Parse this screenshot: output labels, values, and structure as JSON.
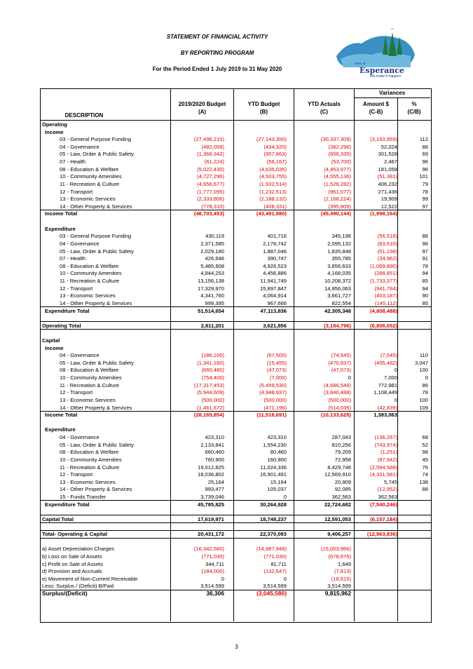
{
  "header": {
    "title": "STATEMENT OF FINANCIAL ACTIVITY",
    "subtitle": "BY REPORTING PROGRAM",
    "period": "For the Period Ended 1 July 2019 to 31 May 2020"
  },
  "logo": {
    "small": "Shire of",
    "name": "Esperance",
    "tag": "We make it happen!"
  },
  "columns": {
    "description": "DESCRIPTION",
    "variances": "Variances",
    "c0": [
      "2019/2020 Budget",
      "(A)"
    ],
    "c1": [
      "YTD Budget",
      "(B)"
    ],
    "c2": [
      "YTD Actuals",
      "(C)"
    ],
    "c3": [
      "Amount $",
      "(C-B)"
    ],
    "c4": [
      "%",
      "(C/B)"
    ]
  },
  "rows": [
    {
      "label": "Operating",
      "level": 0,
      "bold": true,
      "vals": [
        "",
        "",
        "",
        "",
        ""
      ]
    },
    {
      "label": "Income",
      "level": 1,
      "bold": true,
      "vals": [
        "",
        "",
        "",
        "",
        ""
      ]
    },
    {
      "label": "03 - General Purpose Funding",
      "level": 2,
      "vals": [
        "(27,496,215)",
        "(27,143,350)",
        "(30,337,309)",
        "(3,193,959)",
        "112"
      ]
    },
    {
      "label": "04 - Governance",
      "level": 2,
      "vals": [
        "(482,058)",
        "(434,320)",
        "(382,296)",
        "52,024",
        "88"
      ]
    },
    {
      "label": "05 - Law, Order & Public Safety",
      "level": 2,
      "vals": [
        "(1,368,342)",
        "(957,863)",
        "(656,335)",
        "301,528",
        "69"
      ]
    },
    {
      "label": "07 - Health",
      "level": 2,
      "vals": [
        "(61,224)",
        "(56,167)",
        "(53,700)",
        "2,467",
        "96"
      ]
    },
    {
      "label": "08 - Education & Welfare",
      "level": 2,
      "vals": [
        "(5,022,430)",
        "(4,635,035)",
        "(4,453,977)",
        "181,058",
        "96"
      ]
    },
    {
      "label": "10 - Community Amenities",
      "level": 2,
      "vals": [
        "(4,727,296)",
        "(4,503,755)",
        "(4,555,136)",
        "(51,381)",
        "101"
      ]
    },
    {
      "label": "11 - Recreation & Culture",
      "level": 2,
      "vals": [
        "(4,656,677)",
        "(1,932,514)",
        "(1,526,282)",
        "406,232",
        "79"
      ]
    },
    {
      "label": "12 - Transport",
      "level": 2,
      "vals": [
        "(1,777,095)",
        "(1,232,513)",
        "(961,077)",
        "271,436",
        "78"
      ]
    },
    {
      "label": "13 - Economic Services",
      "level": 2,
      "vals": [
        "(2,333,806)",
        "(2,188,132)",
        "(2,168,224)",
        "19,909",
        "99"
      ]
    },
    {
      "label": "14 - Other Property & Services",
      "level": 2,
      "vals": [
        "(778,310)",
        "(408,331)",
        "(395,809)",
        "12,522",
        "97"
      ]
    },
    {
      "label": "Income Total",
      "level": 1,
      "bold": true,
      "line": true,
      "vals": [
        "(48,703,453)",
        "(43,491,980)",
        "(45,490,144)",
        "(1,998,164)",
        ""
      ]
    },
    {
      "label": "",
      "level": 0,
      "vals": [
        "",
        "",
        "",
        "",
        ""
      ]
    },
    {
      "label": "Expenditure",
      "level": 1,
      "bold": true,
      "vals": [
        "",
        "",
        "",
        "",
        ""
      ]
    },
    {
      "label": "03 - General Purpose Funding",
      "level": 2,
      "vals": [
        "430,119",
        "401,716",
        "345,198",
        "(56,518)",
        "86"
      ]
    },
    {
      "label": "04 - Governance",
      "level": 2,
      "vals": [
        "2,371,585",
        "2,178,742",
        "2,095,132",
        "(83,610)",
        "96"
      ]
    },
    {
      "label": "05 - Law, Order & Public Safety",
      "level": 2,
      "vals": [
        "2,029,180",
        "1,887,046",
        "1,835,848",
        "(51,198)",
        "97"
      ]
    },
    {
      "label": "07 - Health",
      "level": 2,
      "vals": [
        "426,646",
        "390,747",
        "355,785",
        "(34,962)",
        "91"
      ]
    },
    {
      "label": "08 - Education & Welfare",
      "level": 2,
      "vals": [
        "5,485,608",
        "4,926,523",
        "3,856,633",
        "(1,069,890)",
        "78"
      ]
    },
    {
      "label": "10 - Community Amenities",
      "level": 2,
      "vals": [
        "4,944,253",
        "4,456,886",
        "4,168,035",
        "(288,851)",
        "94"
      ]
    },
    {
      "label": "11 - Recreation & Culture",
      "level": 2,
      "vals": [
        "13,156,138",
        "11,941,749",
        "10,208,372",
        "(1,733,377)",
        "85"
      ]
    },
    {
      "label": "12 - Transport",
      "level": 2,
      "vals": [
        "17,329,970",
        "15,897,847",
        "14,956,063",
        "(941,784)",
        "94"
      ]
    },
    {
      "label": "13 - Economic Services",
      "level": 2,
      "vals": [
        "4,341,760",
        "4,064,914",
        "3,661,727",
        "(403,187)",
        "90"
      ]
    },
    {
      "label": "14 - Other Property & Services",
      "level": 2,
      "vals": [
        "999,395",
        "967,666",
        "822,554",
        "(145,112)",
        "85"
      ]
    },
    {
      "label": "Expenditure Total",
      "level": 1,
      "bold": true,
      "line": true,
      "vals": [
        "51,514,654",
        "47,113,836",
        "42,305,348",
        "(4,808,488)",
        ""
      ]
    },
    {
      "label": "",
      "level": 0,
      "vals": [
        "",
        "",
        "",
        "",
        ""
      ]
    },
    {
      "label": "Operating Total",
      "level": 0,
      "bold": true,
      "line": true,
      "line2": true,
      "vals": [
        "2,811,201",
        "3,621,856",
        "(3,184,796)",
        "(6,806,652)",
        ""
      ]
    },
    {
      "label": "",
      "level": 0,
      "vals": [
        "",
        "",
        "",
        "",
        ""
      ]
    },
    {
      "label": "Capital",
      "level": 0,
      "bold": true,
      "vals": [
        "",
        "",
        "",
        "",
        ""
      ]
    },
    {
      "label": "Income",
      "level": 1,
      "bold": true,
      "vals": [
        "",
        "",
        "",
        "",
        ""
      ]
    },
    {
      "label": "04 - Governance",
      "level": 2,
      "vals": [
        "(186,100)",
        "(67,500)",
        "(74,545)",
        "(7,045)",
        "110"
      ]
    },
    {
      "label": "05 - Law, Order & Public Safety",
      "level": 2,
      "vals": [
        "(1,341,160)",
        "(15,455)",
        "(470,937)",
        "(455,482)",
        "3,047"
      ]
    },
    {
      "label": "08 - Education & Welfare",
      "level": 2,
      "vals": [
        "(660,460)",
        "(47,073)",
        "(47,073)",
        "0",
        "100"
      ]
    },
    {
      "label": "10 - Community Amenities",
      "level": 2,
      "vals": [
        "(754,400)",
        "(7,000)",
        "0",
        "7,000",
        "0"
      ]
    },
    {
      "label": "11 - Recreation & Culture",
      "level": 2,
      "vals": [
        "(17,317,453)",
        "(5,459,530)",
        "(4,686,549)",
        "772,981",
        "86"
      ]
    },
    {
      "label": "12 - Transport",
      "level": 2,
      "vals": [
        "(5,944,609)",
        "(4,948,937)",
        "(3,840,488)",
        "1,108,449",
        "78"
      ]
    },
    {
      "label": "13 - Economic Services",
      "level": 2,
      "vals": [
        "(500,000)",
        "(500,000)",
        "(500,000)",
        "0",
        "100"
      ]
    },
    {
      "label": "14 - Other Property & Services",
      "level": 2,
      "vals": [
        "(1,461,672)",
        "(471,196)",
        "(514,035)",
        "(42,839)",
        "109"
      ]
    },
    {
      "label": "Income Total",
      "level": 1,
      "bold": true,
      "line": true,
      "vals": [
        "(28,165,854)",
        "(11,516,691)",
        "(10,133,628)",
        "1,383,063",
        ""
      ]
    },
    {
      "label": "",
      "level": 0,
      "vals": [
        "",
        "",
        "",
        "",
        ""
      ]
    },
    {
      "label": "Expenditure",
      "level": 1,
      "bold": true,
      "vals": [
        "",
        "",
        "",
        "",
        ""
      ]
    },
    {
      "label": "04 - Governance",
      "level": 2,
      "vals": [
        "423,310",
        "423,310",
        "287,043",
        "(136,267)",
        "68"
      ]
    },
    {
      "label": "05 - Law, Order & Public Safety",
      "level": 2,
      "vals": [
        "2,133,841",
        "1,554,230",
        "810,256",
        "(743,974)",
        "52"
      ]
    },
    {
      "label": "08 - Education & Welfare",
      "level": 2,
      "vals": [
        "660,460",
        "80,460",
        "79,209",
        "(1,251)",
        "98"
      ]
    },
    {
      "label": "10 - Community Amenities",
      "level": 2,
      "vals": [
        "760,900",
        "160,900",
        "72,958",
        "(87,942)",
        "45"
      ]
    },
    {
      "label": "11 - Recreation & Culture",
      "level": 2,
      "vals": [
        "19,012,825",
        "11,024,336",
        "8,429,748",
        "(2,594,588)",
        "76"
      ]
    },
    {
      "label": "12 - Transport",
      "level": 2,
      "vals": [
        "18,036,802",
        "16,901,491",
        "12,569,910",
        "(4,331,581)",
        "74"
      ]
    },
    {
      "label": "13 - Economic Services",
      "level": 2,
      "vals": [
        "25,164",
        "15,164",
        "20,909",
        "5,745",
        "138"
      ]
    },
    {
      "label": "14 - Other Property & Services",
      "level": 2,
      "vals": [
        "993,477",
        "105,037",
        "92,085",
        "(12,952)",
        "88"
      ]
    },
    {
      "label": "15 - Funds Transfer",
      "level": 2,
      "vals": [
        "3,739,046",
        "0",
        "362,563",
        "362,563",
        ""
      ]
    },
    {
      "label": "Expenditure Total",
      "level": 1,
      "bold": true,
      "line": true,
      "vals": [
        "45,785,825",
        "30,264,928",
        "22,724,682",
        "(7,540,246)",
        ""
      ]
    },
    {
      "label": "",
      "level": 0,
      "vals": [
        "",
        "",
        "",
        "",
        ""
      ]
    },
    {
      "label": "Capital Total",
      "level": 0,
      "bold": true,
      "line": true,
      "line2": true,
      "vals": [
        "17,619,971",
        "18,748,237",
        "12,591,053",
        "(6,157,184)",
        ""
      ]
    },
    {
      "label": "",
      "level": 0,
      "vals": [
        "",
        "",
        "",
        "",
        ""
      ]
    },
    {
      "label": "Total- Operating & Capital",
      "level": 0,
      "bold": true,
      "line": true,
      "line2": true,
      "vals": [
        "20,431,172",
        "22,370,093",
        "9,406,257",
        "(12,963,836)",
        ""
      ]
    },
    {
      "label": "",
      "level": 0,
      "vals": [
        "",
        "",
        "",
        "",
        ""
      ]
    },
    {
      "label": "a) Asset Depreciation Charges",
      "level": 0,
      "vals": [
        "(16,342,560)",
        "(14,987,948)",
        "(15,003,966)",
        "",
        ""
      ]
    },
    {
      "label": "b) Loss on Sale of Assets",
      "level": 0,
      "vals": [
        "(771,030)",
        "(771,030)",
        "(678,876)",
        "",
        ""
      ]
    },
    {
      "label": "c) Profit on Sale of Assets",
      "level": 0,
      "vals": [
        "344,711",
        "81,711",
        "1,649",
        "",
        ""
      ]
    },
    {
      "label": "d) Provision and Accruals",
      "level": 0,
      "vals": [
        "(184,000)",
        "(132,647)",
        "(7,813)",
        "",
        ""
      ]
    },
    {
      "label": "e) Movement of Non-Current Receivable",
      "level": 0,
      "vals": [
        "0",
        "0",
        "(18,615)",
        "",
        ""
      ]
    },
    {
      "label": "Less: Surplus / (Deficit) B/Fwd",
      "level": 0,
      "vals": [
        "3,514,599",
        "3,514,599",
        "3,514,599",
        "",
        ""
      ]
    },
    {
      "label": "Surplus/(Deficit)",
      "level": 0,
      "bold": true,
      "big": true,
      "line": true,
      "vals": [
        "36,306",
        "(3,045,580)",
        "9,815,962",
        "",
        ""
      ]
    }
  ],
  "page_number": "3"
}
